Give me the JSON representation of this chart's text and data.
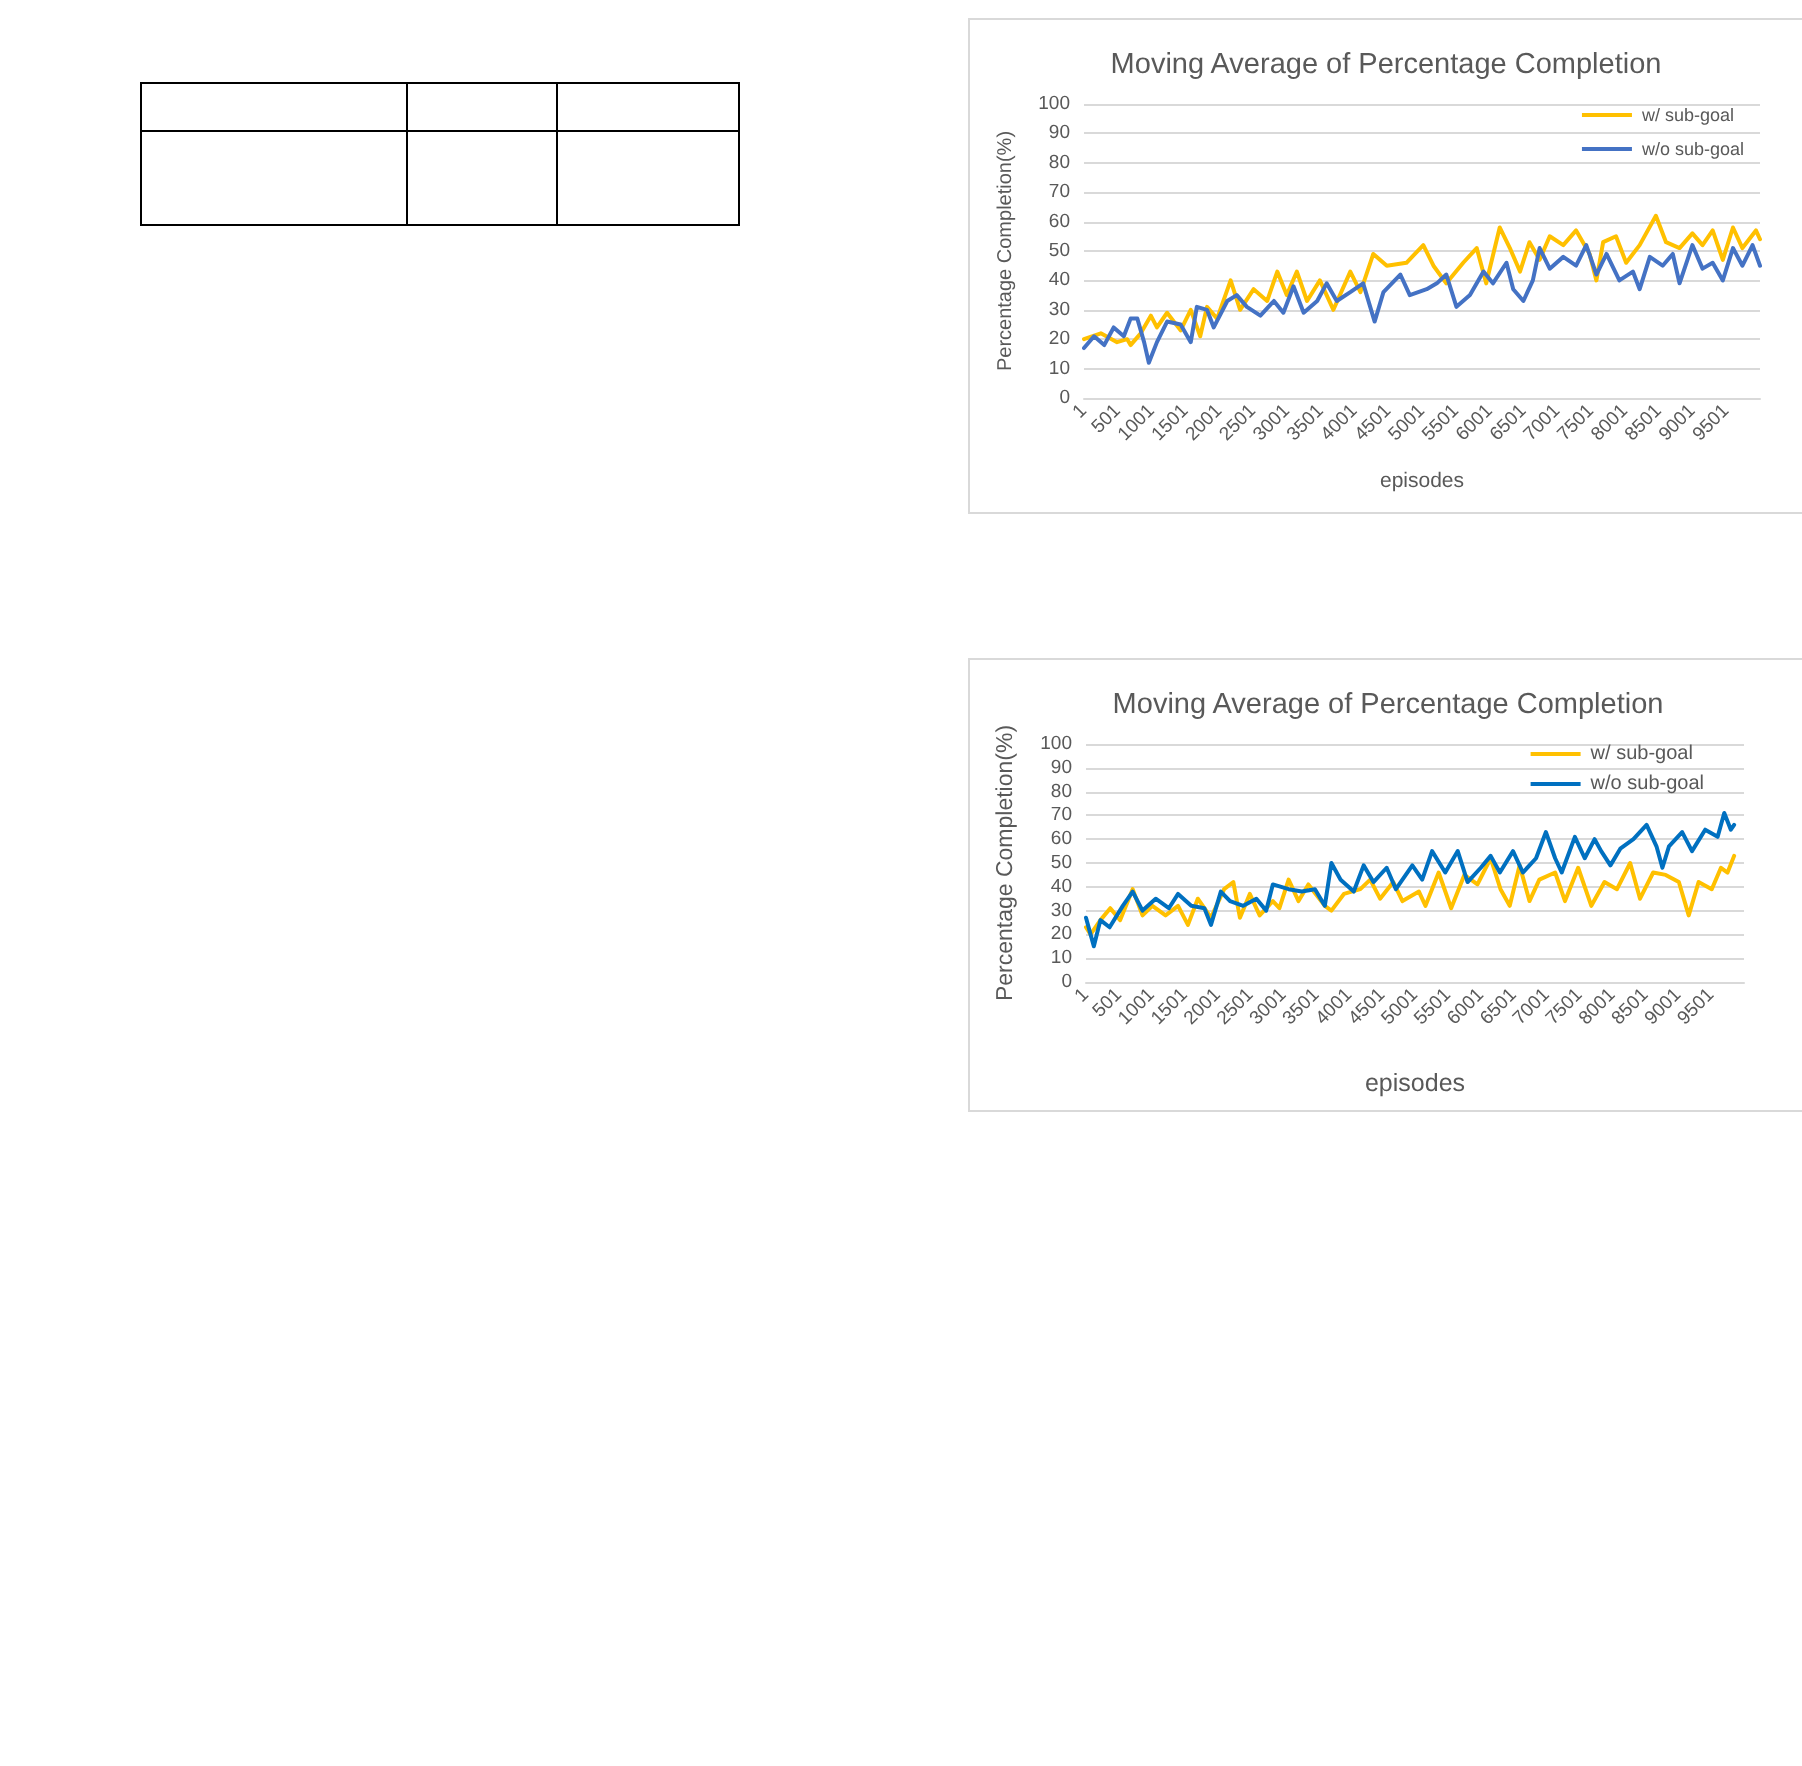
{
  "chart_data": [
    {
      "type": "line",
      "title": "Moving Average of Percentage Completion",
      "xlabel": "episodes",
      "ylabel": "Percentage Completion(%)",
      "xlim": [
        1,
        10000
      ],
      "xticks": [
        1,
        501,
        1001,
        1501,
        2001,
        2501,
        3001,
        3501,
        4001,
        4501,
        5001,
        5501,
        6001,
        6501,
        7001,
        7501,
        8001,
        8501,
        9001,
        9501
      ],
      "ylim": [
        0,
        100
      ],
      "yticks": [
        0,
        10,
        20,
        30,
        40,
        50,
        60,
        70,
        80,
        90,
        100
      ],
      "grid": "y",
      "legend": "top right",
      "marker": "none",
      "line_style": "solid",
      "series": [
        {
          "name": "w/ sub-goal",
          "color": "#ffc000",
          "x": [
            1,
            250,
            490,
            640,
            690,
            840,
            990,
            1080,
            1230,
            1430,
            1580,
            1720,
            1820,
            1970,
            2170,
            2310,
            2510,
            2710,
            2860,
            3000,
            3150,
            3300,
            3490,
            3690,
            3940,
            4090,
            4280,
            4480,
            4770,
            5020,
            5170,
            5360,
            5610,
            5810,
            5950,
            6150,
            6300,
            6450,
            6590,
            6740,
            6890,
            7090,
            7280,
            7480,
            7580,
            7680,
            7870,
            8020,
            8220,
            8460,
            8610,
            8810,
            9000,
            9150,
            9300,
            9450,
            9600,
            9740,
            9940,
            10000
          ],
          "values": [
            20,
            22,
            19,
            20,
            18,
            22,
            28,
            24,
            29,
            23,
            30,
            21,
            31,
            27,
            40,
            30,
            37,
            33,
            43,
            35,
            43,
            33,
            40,
            30,
            43,
            36,
            49,
            45,
            46,
            52,
            45,
            39,
            46,
            51,
            39,
            58,
            51,
            43,
            53,
            47,
            55,
            52,
            57,
            49,
            40,
            53,
            55,
            46,
            52,
            62,
            53,
            51,
            56,
            52,
            57,
            47,
            58,
            51,
            57,
            54
          ]
        },
        {
          "name": "w/o sub-goal",
          "color": "#4472c4",
          "x": [
            1,
            150,
            300,
            440,
            590,
            690,
            790,
            890,
            960,
            1080,
            1230,
            1430,
            1580,
            1670,
            1820,
            1920,
            2120,
            2260,
            2410,
            2610,
            2810,
            2950,
            3100,
            3250,
            3450,
            3590,
            3740,
            3940,
            4130,
            4300,
            4430,
            4680,
            4820,
            5070,
            5220,
            5360,
            5510,
            5710,
            5910,
            6050,
            6250,
            6350,
            6500,
            6640,
            6740,
            6890,
            7090,
            7280,
            7430,
            7580,
            7730,
            7920,
            8120,
            8220,
            8370,
            8560,
            8710,
            8810,
            9000,
            9150,
            9300,
            9450,
            9600,
            9740,
            9890,
            10000
          ],
          "values": [
            17,
            21,
            18,
            24,
            21,
            27,
            27,
            19,
            12,
            19,
            26,
            25,
            19,
            31,
            30,
            24,
            33,
            35,
            31,
            28,
            33,
            29,
            38,
            29,
            33,
            39,
            33,
            36,
            39,
            26,
            36,
            42,
            35,
            37,
            39,
            42,
            31,
            35,
            43,
            39,
            46,
            37,
            33,
            40,
            51,
            44,
            48,
            45,
            52,
            42,
            49,
            40,
            43,
            37,
            48,
            45,
            49,
            39,
            52,
            44,
            46,
            40,
            51,
            45,
            52,
            45
          ]
        }
      ]
    },
    {
      "type": "line",
      "title": "Moving Average of Percentage Completion",
      "xlabel": "episodes",
      "ylabel": "Percentage Completion(%)",
      "xlim": [
        1,
        10000
      ],
      "xticks": [
        1,
        501,
        1001,
        1501,
        2001,
        2501,
        3001,
        3501,
        4001,
        4501,
        5001,
        5501,
        6001,
        6501,
        7001,
        7501,
        8001,
        8501,
        9001,
        9501
      ],
      "ylim": [
        0,
        100
      ],
      "yticks": [
        0,
        10,
        20,
        30,
        40,
        50,
        60,
        70,
        80,
        90,
        100
      ],
      "grid": "y",
      "legend": "top right",
      "marker": "none",
      "line_style": "solid",
      "series": [
        {
          "name": "w/ sub-goal",
          "color": "#ffc000",
          "x": [
            1,
            70,
            220,
            370,
            520,
            710,
            860,
            1010,
            1210,
            1400,
            1550,
            1700,
            1900,
            2100,
            2240,
            2340,
            2490,
            2640,
            2840,
            2940,
            3080,
            3230,
            3380,
            3630,
            3730,
            3920,
            4170,
            4320,
            4470,
            4670,
            4810,
            5060,
            5160,
            5360,
            5550,
            5750,
            5950,
            6150,
            6300,
            6440,
            6590,
            6740,
            6890,
            7130,
            7280,
            7480,
            7680,
            7880,
            8070,
            8270,
            8420,
            8620,
            8810,
            9010,
            9160,
            9310,
            9510,
            9650,
            9750,
            9850
          ],
          "values": [
            23,
            20,
            26,
            31,
            26,
            39,
            28,
            32,
            28,
            32,
            24,
            35,
            27,
            39,
            42,
            27,
            37,
            28,
            34,
            31,
            43,
            34,
            41,
            32,
            30,
            37,
            39,
            43,
            35,
            42,
            34,
            38,
            32,
            46,
            31,
            45,
            41,
            52,
            39,
            32,
            49,
            34,
            43,
            46,
            34,
            48,
            32,
            42,
            39,
            50,
            35,
            46,
            45,
            42,
            28,
            42,
            39,
            48,
            46,
            53
          ]
        },
        {
          "name": "w/o sub-goal",
          "color": "#0070c0",
          "x": [
            1,
            70,
            120,
            220,
            360,
            560,
            710,
            860,
            1060,
            1260,
            1400,
            1600,
            1800,
            1900,
            2050,
            2190,
            2390,
            2590,
            2740,
            2840,
            3080,
            3280,
            3480,
            3630,
            3730,
            3870,
            4070,
            4220,
            4370,
            4570,
            4710,
            4960,
            5110,
            5260,
            5460,
            5650,
            5800,
            6000,
            6150,
            6290,
            6490,
            6640,
            6840,
            6990,
            7130,
            7230,
            7430,
            7580,
            7730,
            7830,
            7970,
            8120,
            8320,
            8520,
            8670,
            8760,
            8860,
            9060,
            9210,
            9410,
            9600,
            9700,
            9800,
            9850
          ],
          "values": [
            27,
            20,
            15,
            26,
            23,
            32,
            38,
            30,
            35,
            31,
            37,
            32,
            31,
            24,
            38,
            34,
            32,
            35,
            30,
            41,
            39,
            38,
            39,
            32,
            50,
            43,
            38,
            49,
            42,
            48,
            39,
            49,
            43,
            55,
            46,
            55,
            42,
            48,
            53,
            46,
            55,
            46,
            52,
            63,
            52,
            46,
            61,
            52,
            60,
            55,
            49,
            56,
            60,
            66,
            57,
            48,
            57,
            63,
            55,
            64,
            61,
            71,
            64,
            66
          ]
        }
      ]
    }
  ]
}
